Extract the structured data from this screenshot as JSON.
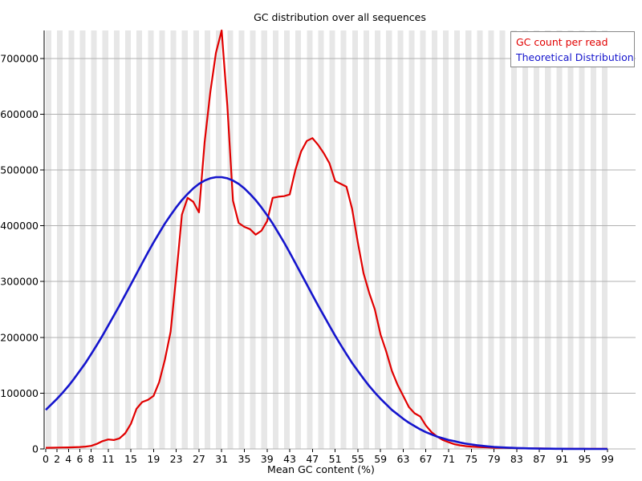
{
  "title": "GC distribution over all sequences",
  "x_axis": {
    "label": "Mean GC content (%)",
    "tick_values": [
      0,
      2,
      4,
      6,
      8,
      11,
      15,
      19,
      23,
      27,
      31,
      35,
      39,
      43,
      47,
      51,
      55,
      59,
      63,
      67,
      71,
      75,
      79,
      83,
      87,
      91,
      95,
      99
    ]
  },
  "y_axis": {
    "tick_values": [
      0,
      100000,
      200000,
      300000,
      400000,
      500000,
      600000,
      700000
    ]
  },
  "legend": [
    {
      "label": "GC count per read",
      "color": "#e10000"
    },
    {
      "label": "Theoretical Distribution",
      "color": "#1515cd"
    }
  ],
  "colors": {
    "red_series": "#e10000",
    "blue_series": "#1515cd",
    "stripe": "#e7e7e7",
    "gridline": "#b0b0b0",
    "axis": "#000000",
    "background": "#ffffff",
    "legend_border": "#888888"
  },
  "chart_data": {
    "type": "line",
    "title": "GC distribution over all sequences",
    "xlabel": "Mean GC content (%)",
    "ylabel": "",
    "xlim": [
      0,
      99
    ],
    "ylim": [
      0,
      750000
    ],
    "grid": "horizontal",
    "background": "striped-vertical-bands",
    "legend_position": "top-right",
    "x": [
      0,
      1,
      2,
      3,
      4,
      5,
      6,
      7,
      8,
      9,
      10,
      11,
      12,
      13,
      14,
      15,
      16,
      17,
      18,
      19,
      20,
      21,
      22,
      23,
      24,
      25,
      26,
      27,
      28,
      29,
      30,
      31,
      32,
      33,
      34,
      35,
      36,
      37,
      38,
      39,
      40,
      41,
      42,
      43,
      44,
      45,
      46,
      47,
      48,
      49,
      50,
      51,
      52,
      53,
      54,
      55,
      56,
      57,
      58,
      59,
      60,
      61,
      62,
      63,
      64,
      65,
      66,
      67,
      68,
      69,
      70,
      71,
      72,
      73,
      74,
      75,
      76,
      77,
      78,
      79,
      80,
      81,
      82,
      83,
      84,
      85,
      86,
      87,
      88,
      89,
      90,
      91,
      92,
      93,
      94,
      95,
      96,
      97,
      98,
      99
    ],
    "series": [
      {
        "name": "GC count per read",
        "color": "#e10000",
        "values": [
          2000,
          2200,
          2400,
          2600,
          2800,
          3000,
          3500,
          4200,
          5500,
          9000,
          14000,
          17000,
          16000,
          19000,
          28000,
          45000,
          72000,
          84000,
          88000,
          95000,
          120000,
          160000,
          210000,
          310000,
          420000,
          450000,
          443000,
          424000,
          550000,
          640000,
          710000,
          750000,
          615000,
          445000,
          405000,
          398000,
          394000,
          384000,
          391000,
          408000,
          450000,
          452000,
          453000,
          456000,
          500000,
          533000,
          552000,
          557000,
          545000,
          530000,
          512000,
          480000,
          475000,
          470000,
          430000,
          370000,
          315000,
          280000,
          250000,
          205000,
          175000,
          140000,
          115000,
          95000,
          75000,
          64000,
          58000,
          42000,
          30000,
          22000,
          16000,
          12000,
          8500,
          6500,
          5000,
          4200,
          3600,
          3000,
          2600,
          2200,
          2000,
          1800,
          1600,
          1400,
          1200,
          1000,
          900,
          800,
          700,
          600,
          500,
          450,
          400,
          350,
          300,
          250,
          200,
          150,
          120,
          100
        ]
      },
      {
        "name": "Theoretical Distribution",
        "color": "#1515cd",
        "values": [
          70000,
          80000,
          90000,
          101000,
          113000,
          126000,
          140000,
          154000,
          170000,
          186000,
          203000,
          221000,
          239000,
          257000,
          276000,
          295000,
          314000,
          333000,
          352000,
          370000,
          387000,
          404000,
          419000,
          433000,
          446000,
          457000,
          467000,
          475000,
          481000,
          485000,
          487000,
          487000,
          485000,
          481000,
          475000,
          467000,
          457000,
          446000,
          433000,
          419000,
          404000,
          387000,
          370000,
          352000,
          333000,
          314000,
          295000,
          276000,
          257000,
          239000,
          221000,
          203000,
          186000,
          170000,
          154000,
          140000,
          126000,
          113000,
          101000,
          90000,
          80000,
          70000,
          62000,
          54000,
          47000,
          41000,
          35000,
          30000,
          26000,
          22000,
          19000,
          16000,
          14000,
          11500,
          9500,
          8000,
          6600,
          5400,
          4500,
          3600,
          3000,
          2400,
          2000,
          1600,
          1300,
          1000,
          800,
          640,
          500,
          400,
          310,
          240,
          190,
          150,
          110,
          84,
          64,
          50,
          38,
          28
        ]
      }
    ]
  }
}
